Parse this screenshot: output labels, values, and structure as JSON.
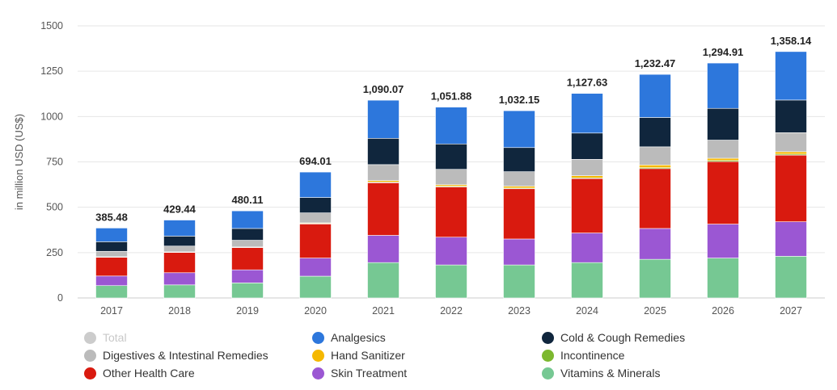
{
  "chart_data": {
    "type": "bar",
    "stacked": true,
    "ylabel": "in million USD (US$)",
    "yticks": [
      0,
      250,
      500,
      750,
      1000,
      1250,
      1500
    ],
    "ylim": [
      0,
      1500
    ],
    "grid": true,
    "legend_position": "bottom",
    "categories": [
      "2017",
      "2018",
      "2019",
      "2020",
      "2021",
      "2022",
      "2023",
      "2024",
      "2025",
      "2026",
      "2027"
    ],
    "totals": [
      385.48,
      429.44,
      480.11,
      694.01,
      1090.07,
      1051.88,
      1032.15,
      1127.63,
      1232.47,
      1294.91,
      1358.14
    ],
    "total_labels": [
      "385.48",
      "429.44",
      "480.11",
      "694.01",
      "1,090.07",
      "1,051.88",
      "1,032.15",
      "1,127.63",
      "1,232.47",
      "1,294.91",
      "1,358.14"
    ],
    "series": [
      {
        "name": "Vitamins & Minerals",
        "color": "#76c893",
        "values": [
          68,
          72,
          83,
          120,
          195,
          182,
          182,
          195,
          213,
          220,
          230
        ]
      },
      {
        "name": "Skin Treatment",
        "color": "#9b57d3",
        "values": [
          53,
          67,
          72,
          100,
          150,
          153,
          143,
          163,
          170,
          187,
          190
        ]
      },
      {
        "name": "Other Health Care",
        "color": "#d91a0f",
        "values": [
          103,
          112,
          123,
          188,
          290,
          277,
          277,
          300,
          330,
          345,
          367
        ]
      },
      {
        "name": "Incontinence",
        "color": "#7cb82f",
        "values": [
          1,
          1,
          1,
          2,
          4,
          4,
          4,
          4,
          5,
          6,
          6
        ]
      },
      {
        "name": "Hand Sanitizer",
        "color": "#f5b800",
        "values": [
          2,
          2,
          2,
          4,
          8,
          8,
          10,
          12,
          15,
          12,
          13
        ]
      },
      {
        "name": "Digestives & Intestinal Remedies",
        "color": "#bbbbbb",
        "values": [
          30,
          32,
          37,
          55,
          88,
          85,
          80,
          90,
          100,
          100,
          105
        ]
      },
      {
        "name": "Cold & Cough Remedies",
        "color": "#10263d",
        "values": [
          53,
          55,
          65,
          85,
          145,
          140,
          133,
          145,
          162,
          175,
          180
        ]
      },
      {
        "name": "Analgesics",
        "color": "#2d77dc",
        "values": [
          75.48,
          88.44,
          97.11,
          140.01,
          210.07,
          202.88,
          203.15,
          218.63,
          237.47,
          249.91,
          267.14
        ]
      }
    ],
    "legend": [
      {
        "name": "Total",
        "color": "#cccccc",
        "disabled": true
      },
      {
        "name": "Analgesics",
        "color": "#2d77dc"
      },
      {
        "name": "Cold & Cough Remedies",
        "color": "#10263d"
      },
      {
        "name": "Digestives & Intestinal Remedies",
        "color": "#bbbbbb"
      },
      {
        "name": "Hand Sanitizer",
        "color": "#f5b800"
      },
      {
        "name": "Incontinence",
        "color": "#7cb82f"
      },
      {
        "name": "Other Health Care",
        "color": "#d91a0f"
      },
      {
        "name": "Skin Treatment",
        "color": "#9b57d3"
      },
      {
        "name": "Vitamins & Minerals",
        "color": "#76c893"
      }
    ]
  }
}
